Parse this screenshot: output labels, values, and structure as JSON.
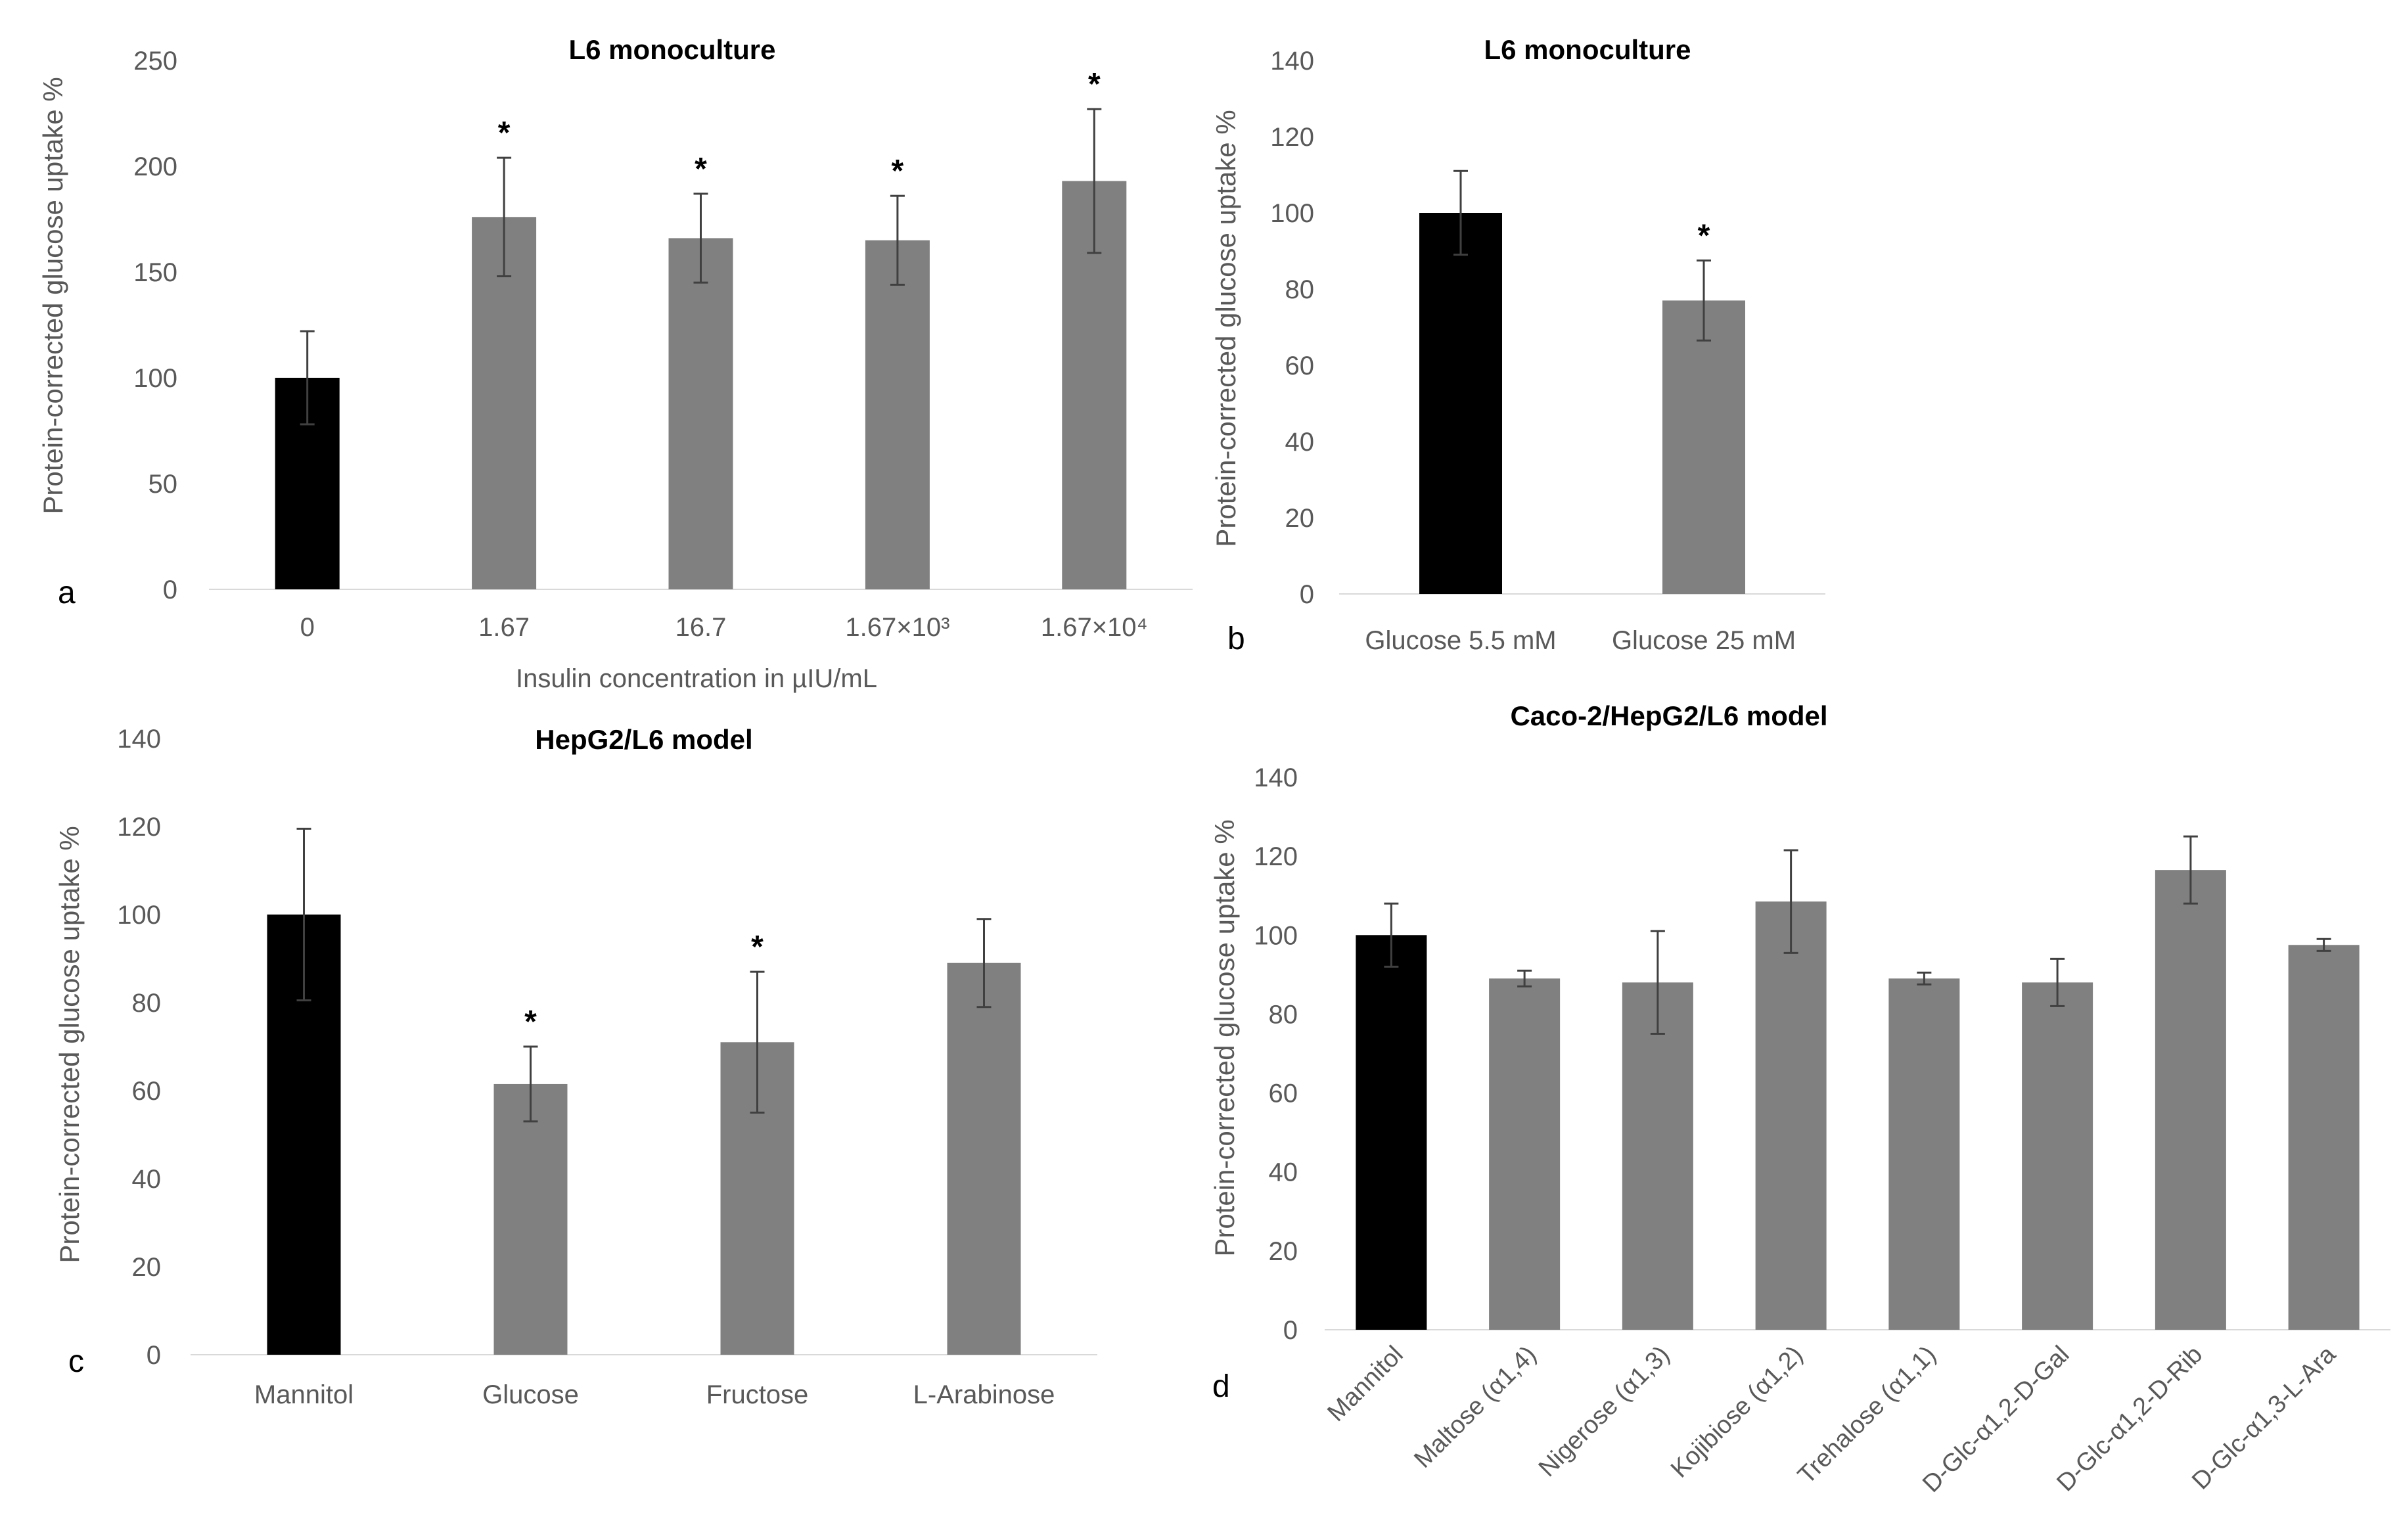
{
  "chart_data": [
    {
      "panel": "a",
      "type": "bar",
      "title": "L6 monoculture",
      "ylabel": "Protein-corrected glucose uptake %",
      "xlabel": "Insulin concentration in µIU/mL",
      "ylim": [
        0,
        250
      ],
      "yticks": [
        0,
        50,
        100,
        150,
        200,
        250
      ],
      "categories": [
        "0",
        "1.67",
        "16.7",
        "1.67×10³",
        "1.67×10⁴"
      ],
      "values": [
        100,
        176,
        166,
        165,
        193
      ],
      "errors": [
        22,
        28,
        21,
        21,
        34
      ],
      "significant": [
        false,
        true,
        true,
        true,
        true
      ],
      "colors": [
        "#000000",
        "#808080",
        "#808080",
        "#808080",
        "#808080"
      ],
      "significance_marker": "*"
    },
    {
      "panel": "b",
      "type": "bar",
      "title": "L6 monoculture",
      "ylabel": "Protein-corrected glucose uptake %",
      "xlabel": "",
      "ylim": [
        0,
        140
      ],
      "yticks": [
        0,
        20,
        40,
        60,
        80,
        100,
        120,
        140
      ],
      "categories": [
        "Glucose 5.5 mM",
        "Glucose 25 mM"
      ],
      "values": [
        100,
        77
      ],
      "errors": [
        11,
        10.5
      ],
      "significant": [
        false,
        true
      ],
      "colors": [
        "#000000",
        "#808080"
      ],
      "significance_marker": "*"
    },
    {
      "panel": "c",
      "type": "bar",
      "title": "HepG2/L6 model",
      "ylabel": "Protein-corrected glucose uptake %",
      "xlabel": "",
      "ylim": [
        0,
        140
      ],
      "yticks": [
        0,
        20,
        40,
        60,
        80,
        100,
        120,
        140
      ],
      "categories": [
        "Mannitol",
        "Glucose",
        "Fructose",
        "L-Arabinose"
      ],
      "values": [
        100,
        61.5,
        71,
        89
      ],
      "errors": [
        19.5,
        8.5,
        16,
        10
      ],
      "significant": [
        false,
        true,
        true,
        false
      ],
      "colors": [
        "#000000",
        "#808080",
        "#808080",
        "#808080"
      ],
      "significance_marker": "*"
    },
    {
      "panel": "d",
      "type": "bar",
      "title": "Caco-2/HepG2/L6 model",
      "ylabel": "Protein-corrected glucose uptake %",
      "xlabel": "",
      "ylim": [
        0,
        140
      ],
      "yticks": [
        0,
        20,
        40,
        60,
        80,
        100,
        120,
        140
      ],
      "categories": [
        "Mannitol",
        "Maltose (α1,4)",
        "Nigerose (α1,3)",
        "Kojibiose (α1,2)",
        "Trehalose (α1,1)",
        "D-Glc-α1,2-D-Gal",
        "D-Glc-α1,2-D-Rib",
        "D-Glc-α1,3-L-Ara"
      ],
      "values": [
        100,
        89,
        88,
        108.5,
        89,
        88,
        116.5,
        97.5
      ],
      "errors": [
        8,
        2,
        13,
        13,
        1.5,
        6,
        8.5,
        1.5
      ],
      "significant": [
        false,
        false,
        false,
        false,
        false,
        false,
        false,
        false
      ],
      "colors": [
        "#000000",
        "#808080",
        "#808080",
        "#808080",
        "#808080",
        "#808080",
        "#808080",
        "#808080"
      ],
      "significance_marker": "*"
    }
  ]
}
